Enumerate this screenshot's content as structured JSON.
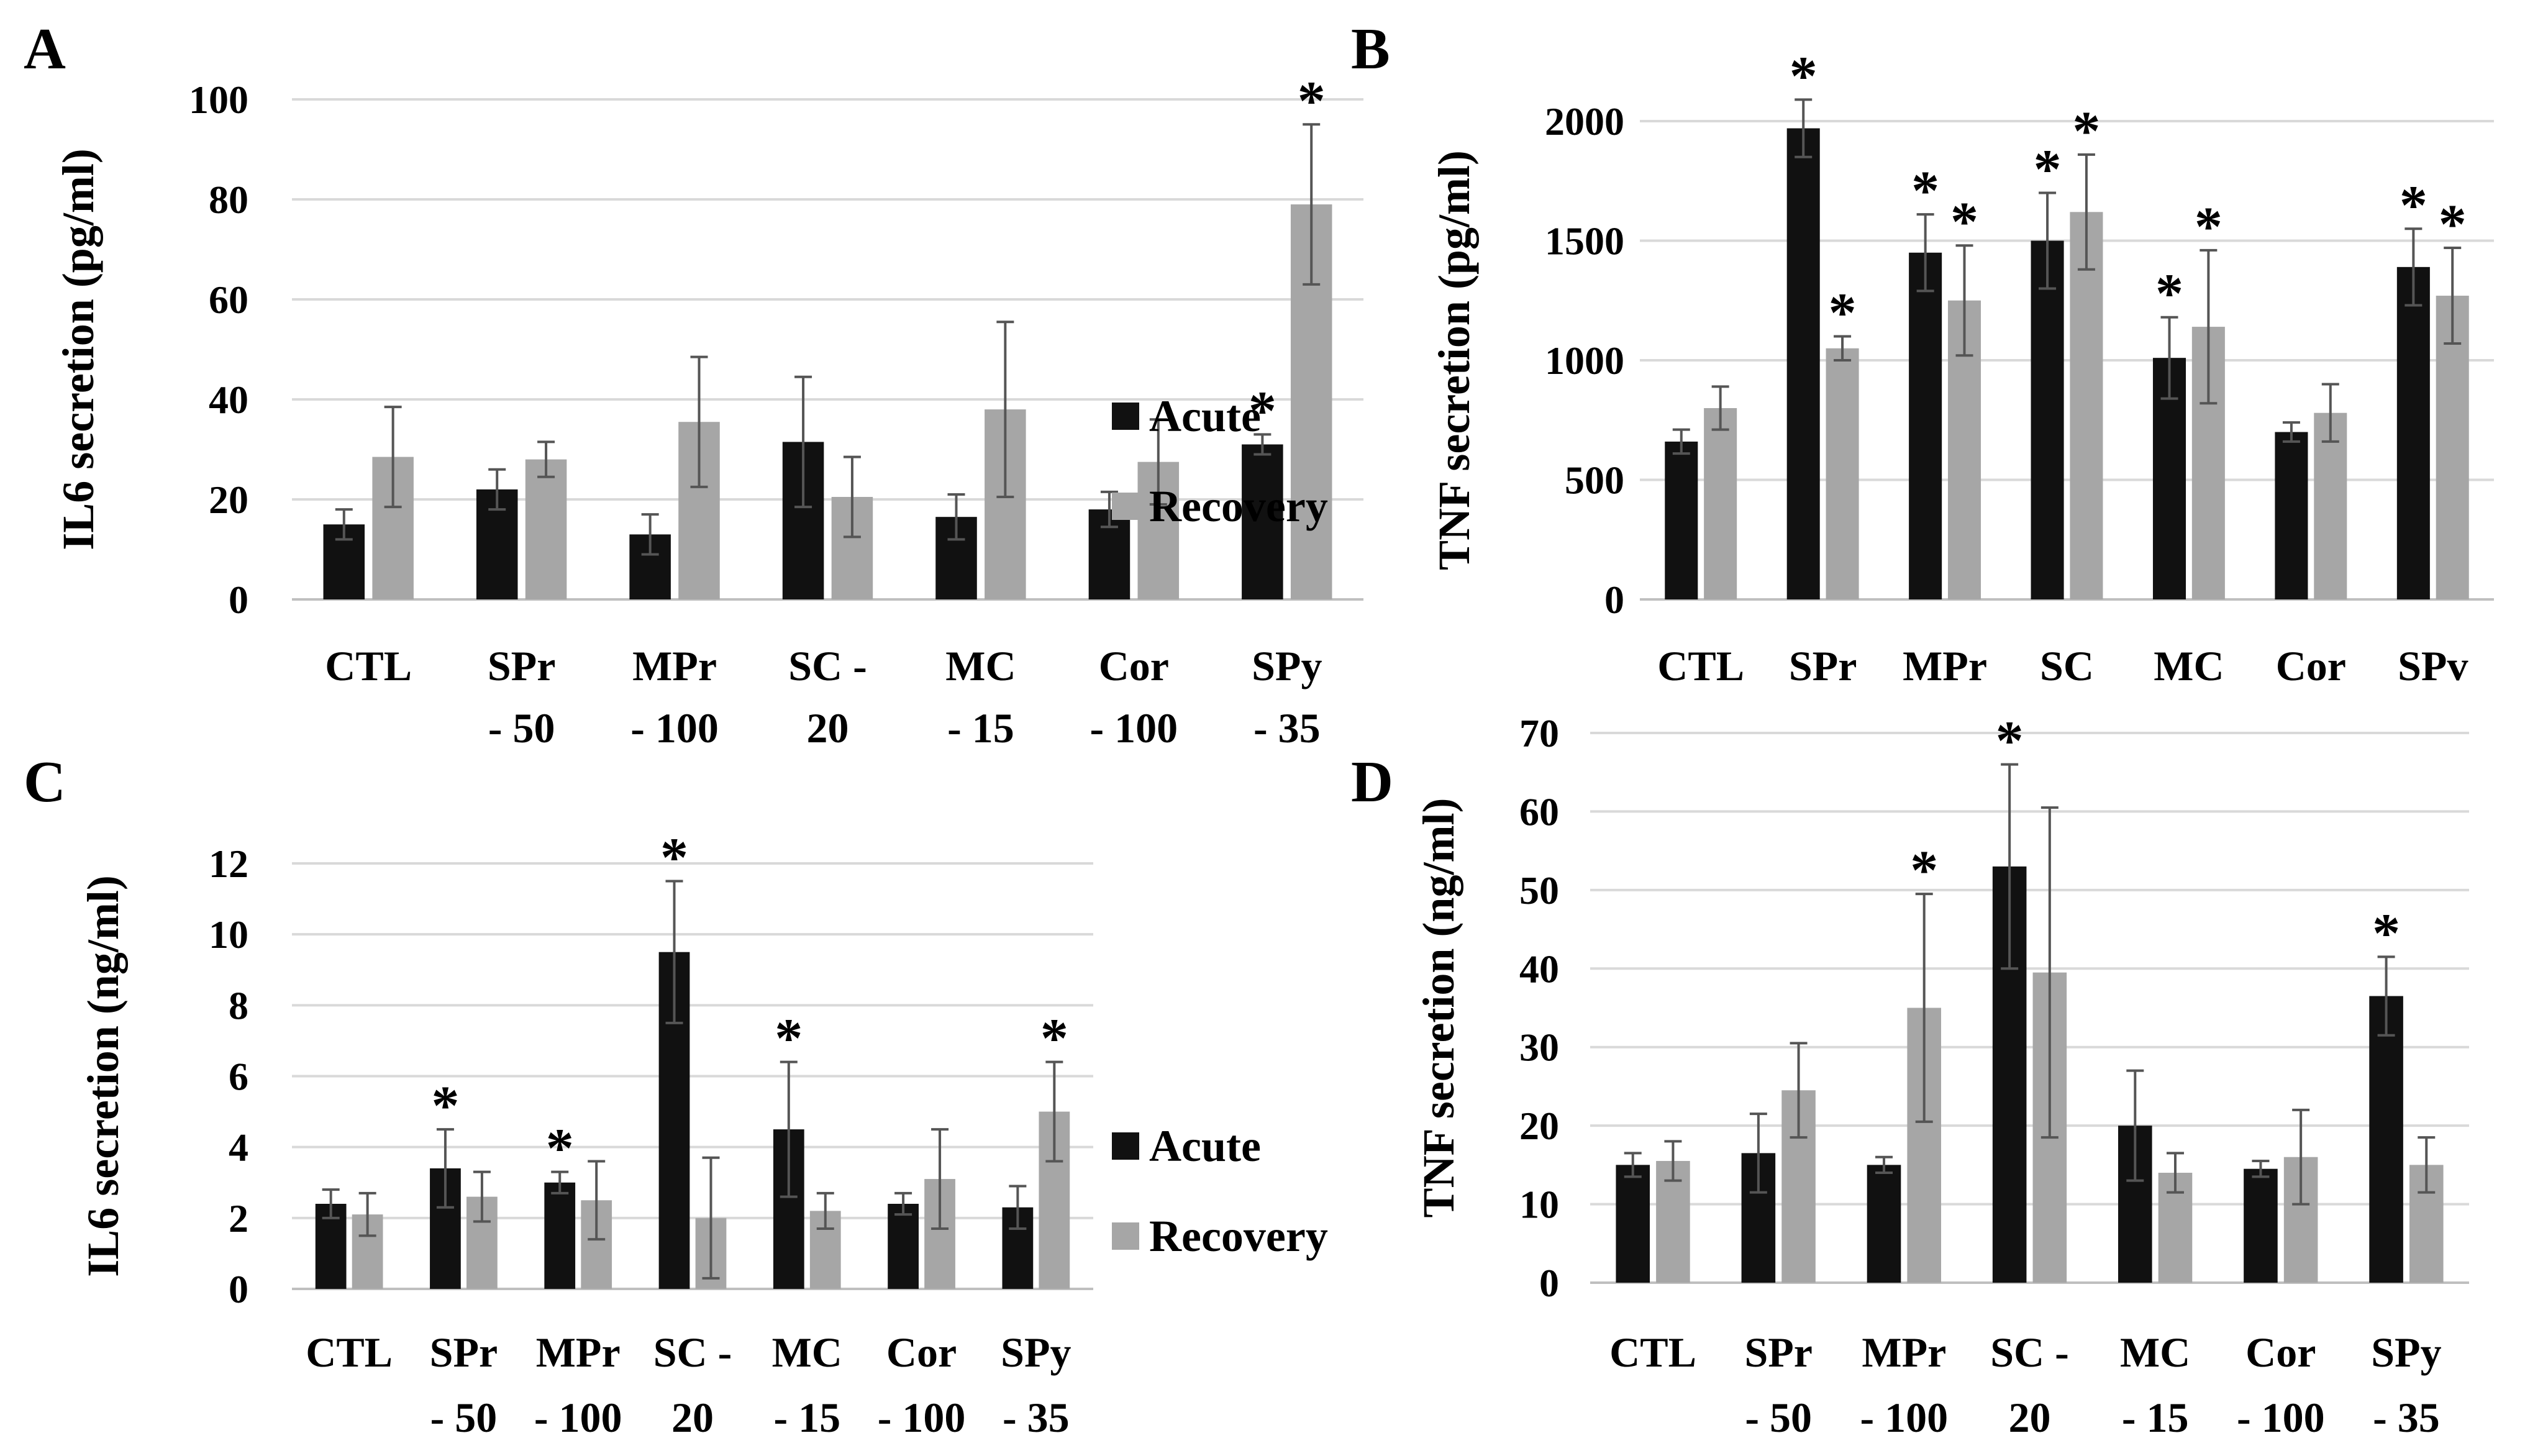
{
  "chart_data": [
    {
      "panel": "A",
      "type": "bar",
      "ylabel": "IL6 secretion (pg/ml)",
      "ylim": [
        0,
        100
      ],
      "yticks": [
        0,
        20,
        40,
        60,
        80,
        100
      ],
      "ytick_labels": [
        "0",
        "20",
        "40",
        "60",
        "80",
        "100"
      ],
      "grid": true,
      "legend": true,
      "categories": [
        [
          "CTL"
        ],
        [
          "SPr",
          "- 50"
        ],
        [
          "MPr",
          "- 100"
        ],
        [
          "SC -",
          "20"
        ],
        [
          "MC",
          "- 15"
        ],
        [
          "Cor",
          "- 100"
        ],
        [
          "SPy",
          "- 35"
        ]
      ],
      "series": [
        {
          "name": "Acute",
          "color": "#111111",
          "values": [
            15,
            22,
            13,
            31.5,
            16.5,
            18,
            31
          ],
          "errors": [
            3,
            4,
            4,
            13,
            4.5,
            3.5,
            2
          ],
          "stars": [
            false,
            false,
            false,
            false,
            false,
            false,
            true
          ]
        },
        {
          "name": "Recovery",
          "color": "#a6a6a6",
          "values": [
            28.5,
            28,
            35.5,
            20.5,
            38,
            27.5,
            79
          ],
          "errors": [
            10,
            3.5,
            13,
            8,
            17.5,
            8.5,
            16
          ],
          "stars": [
            false,
            false,
            false,
            false,
            false,
            false,
            true
          ]
        }
      ]
    },
    {
      "panel": "B",
      "type": "bar",
      "ylabel": "TNF secretion (pg/ml)",
      "ylim": [
        0,
        2000
      ],
      "yticks": [
        0,
        500,
        1000,
        1500,
        2000
      ],
      "ytick_labels": [
        "0",
        "500",
        "1000",
        "1500",
        "2000"
      ],
      "grid": true,
      "legend": false,
      "categories": [
        [
          "CTL"
        ],
        [
          "SPr"
        ],
        [
          "MPr"
        ],
        [
          "SC",
          "-"
        ],
        [
          "MC"
        ],
        [
          "Cor"
        ],
        [
          "SPv"
        ]
      ],
      "series": [
        {
          "name": "Acute",
          "color": "#111111",
          "values": [
            660,
            1970,
            1450,
            1500,
            1010,
            700,
            1390
          ],
          "errors": [
            50,
            120,
            160,
            200,
            170,
            40,
            160
          ],
          "stars": [
            false,
            true,
            true,
            true,
            true,
            false,
            true
          ]
        },
        {
          "name": "Recovery",
          "color": "#a6a6a6",
          "values": [
            800,
            1050,
            1250,
            1620,
            1140,
            780,
            1270
          ],
          "errors": [
            90,
            50,
            230,
            240,
            320,
            120,
            200
          ],
          "stars": [
            false,
            true,
            true,
            true,
            true,
            false,
            true
          ]
        }
      ]
    },
    {
      "panel": "C",
      "type": "bar",
      "ylabel": "IL6 secretion (ng/ml)",
      "ylim": [
        0,
        12
      ],
      "yticks": [
        0,
        2,
        4,
        6,
        8,
        10,
        12
      ],
      "ytick_labels": [
        "0",
        "2",
        "4",
        "6",
        "8",
        "10",
        "12"
      ],
      "grid": true,
      "legend": true,
      "categories": [
        [
          "CTL"
        ],
        [
          "SPr",
          "- 50"
        ],
        [
          "MPr",
          "- 100"
        ],
        [
          "SC -",
          "20"
        ],
        [
          "MC",
          "- 15"
        ],
        [
          "Cor",
          "- 100"
        ],
        [
          "SPy",
          "- 35"
        ]
      ],
      "series": [
        {
          "name": "Acute",
          "color": "#111111",
          "values": [
            2.4,
            3.4,
            3.0,
            9.5,
            4.5,
            2.4,
            2.3
          ],
          "errors": [
            0.4,
            1.1,
            0.3,
            2.0,
            1.9,
            0.3,
            0.6
          ],
          "stars": [
            false,
            true,
            true,
            true,
            true,
            false,
            false
          ]
        },
        {
          "name": "Recovery",
          "color": "#a6a6a6",
          "values": [
            2.1,
            2.6,
            2.5,
            2.0,
            2.2,
            3.1,
            5.0
          ],
          "errors": [
            0.6,
            0.7,
            1.1,
            1.7,
            0.5,
            1.4,
            1.4
          ],
          "stars": [
            false,
            false,
            false,
            false,
            false,
            false,
            true
          ]
        }
      ]
    },
    {
      "panel": "D",
      "type": "bar",
      "ylabel": "TNF secretion (ng/ml)",
      "ylim": [
        0,
        70
      ],
      "yticks": [
        0,
        10,
        20,
        30,
        40,
        50,
        60,
        70
      ],
      "ytick_labels": [
        "0",
        "10",
        "20",
        "30",
        "40",
        "50",
        "60",
        "70"
      ],
      "grid": true,
      "legend": false,
      "categories": [
        [
          "CTL"
        ],
        [
          "SPr",
          "- 50"
        ],
        [
          "MPr",
          "- 100"
        ],
        [
          "SC -",
          "20"
        ],
        [
          "MC",
          "- 15"
        ],
        [
          "Cor",
          "- 100"
        ],
        [
          "SPy",
          "- 35"
        ]
      ],
      "series": [
        {
          "name": "Acute",
          "color": "#111111",
          "values": [
            15,
            16.5,
            15,
            53,
            20,
            14.5,
            36.5
          ],
          "errors": [
            1.5,
            5,
            1,
            13,
            7,
            1,
            5
          ],
          "stars": [
            false,
            false,
            false,
            true,
            false,
            false,
            true
          ]
        },
        {
          "name": "Recovery",
          "color": "#a6a6a6",
          "values": [
            15.5,
            24.5,
            35,
            39.5,
            14,
            16,
            15
          ],
          "errors": [
            2.5,
            6,
            14.5,
            21,
            2.5,
            6,
            3.5
          ],
          "stars": [
            false,
            false,
            true,
            false,
            false,
            false,
            false
          ]
        }
      ]
    }
  ],
  "legend_labels": {
    "acute": "Acute",
    "recovery": "Recovery"
  },
  "star_symbol": "*",
  "colors": {
    "acute": "#111111",
    "recovery": "#a6a6a6",
    "grid": "#d9d9d9",
    "axis": "#bfbfbf",
    "error": "#555555"
  }
}
